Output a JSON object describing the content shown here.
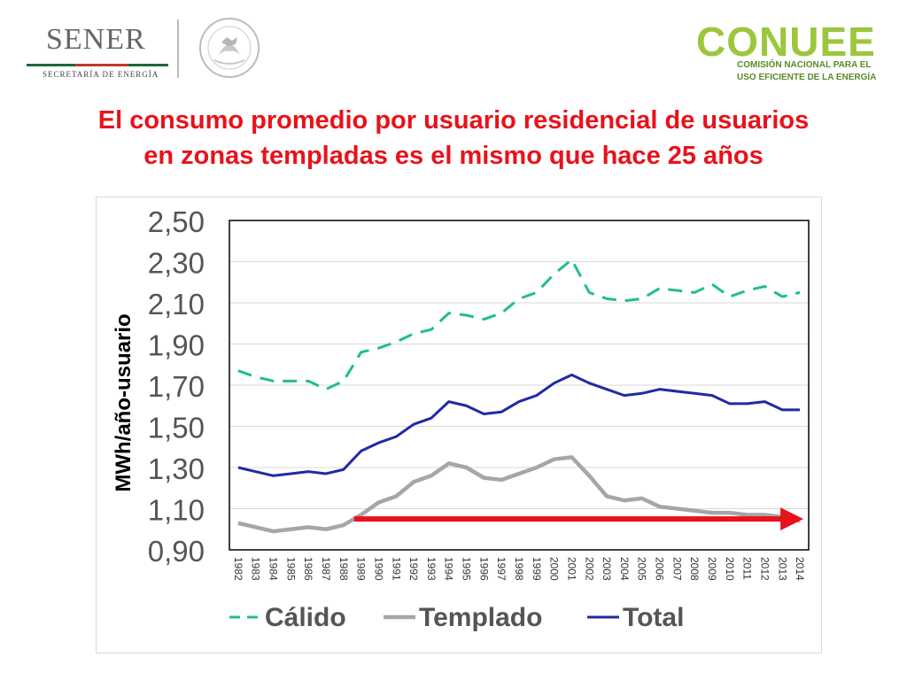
{
  "header": {
    "sener_logo_text": "SENER",
    "sener_subtitle": "SECRETARÍA DE ENERGÍA",
    "seal_text": "ESTADOS UNIDOS MEXICANOS",
    "conuee_logo_text": "CONUEE",
    "conuee_subtitle_line1": "COMISIÓN NACIONAL PARA EL",
    "conuee_subtitle_line2": "USO EFICIENTE DE LA ENERGÍA"
  },
  "title": {
    "line1": "El consumo promedio por usuario residencial de usuarios",
    "line2": "en zonas templadas es el mismo que hace 25 años"
  },
  "colors": {
    "calido": "#22c080",
    "templado": "#a6a6a6",
    "total": "#1f2aa3",
    "arrow": "#e8121a",
    "title": "#e8121a"
  },
  "chart_data": {
    "type": "line",
    "title": "",
    "xlabel": "",
    "ylabel": "MWh/año-usuario",
    "ylim": [
      0.9,
      2.5
    ],
    "yticks": [
      "2,50",
      "2,30",
      "2,10",
      "1,90",
      "1,70",
      "1,50",
      "1,30",
      "1,10",
      "0,90"
    ],
    "grid": true,
    "legend_position": "bottom",
    "x": [
      "1982",
      "1983",
      "1984",
      "1985",
      "1986",
      "1987",
      "1988",
      "1989",
      "1990",
      "1991",
      "1992",
      "1993",
      "1994",
      "1995",
      "1996",
      "1997",
      "1998",
      "1999",
      "2000",
      "2001",
      "2002",
      "2003",
      "2004",
      "2005",
      "2006",
      "2007",
      "2008",
      "2009",
      "2010",
      "2011",
      "2012",
      "2013",
      "2014"
    ],
    "series": [
      {
        "name": "Cálido",
        "style": "dashed",
        "values": [
          1.77,
          1.74,
          1.72,
          1.72,
          1.72,
          1.68,
          1.72,
          1.86,
          1.88,
          1.91,
          1.95,
          1.97,
          2.05,
          2.04,
          2.02,
          2.05,
          2.12,
          2.15,
          2.24,
          2.31,
          2.15,
          2.12,
          2.11,
          2.12,
          2.17,
          2.16,
          2.15,
          2.19,
          2.13,
          2.16,
          2.18,
          2.13,
          2.15
        ]
      },
      {
        "name": "Templado",
        "style": "solid",
        "values": [
          1.03,
          1.01,
          0.99,
          1.0,
          1.01,
          1.0,
          1.02,
          1.07,
          1.13,
          1.16,
          1.23,
          1.26,
          1.32,
          1.3,
          1.25,
          1.24,
          1.27,
          1.3,
          1.34,
          1.35,
          1.26,
          1.16,
          1.14,
          1.15,
          1.11,
          1.1,
          1.09,
          1.08,
          1.08,
          1.07,
          1.07,
          1.06,
          1.04
        ]
      },
      {
        "name": "Total",
        "style": "solid",
        "values": [
          1.3,
          1.28,
          1.26,
          1.27,
          1.28,
          1.27,
          1.29,
          1.38,
          1.42,
          1.45,
          1.51,
          1.54,
          1.62,
          1.6,
          1.56,
          1.57,
          1.62,
          1.65,
          1.71,
          1.75,
          1.71,
          1.68,
          1.65,
          1.66,
          1.68,
          1.67,
          1.66,
          1.65,
          1.61,
          1.61,
          1.62,
          1.58,
          1.58
        ]
      }
    ],
    "annotations": [
      {
        "type": "arrow",
        "from_x": "1989",
        "to_x": "2014",
        "y": 1.05
      }
    ]
  }
}
